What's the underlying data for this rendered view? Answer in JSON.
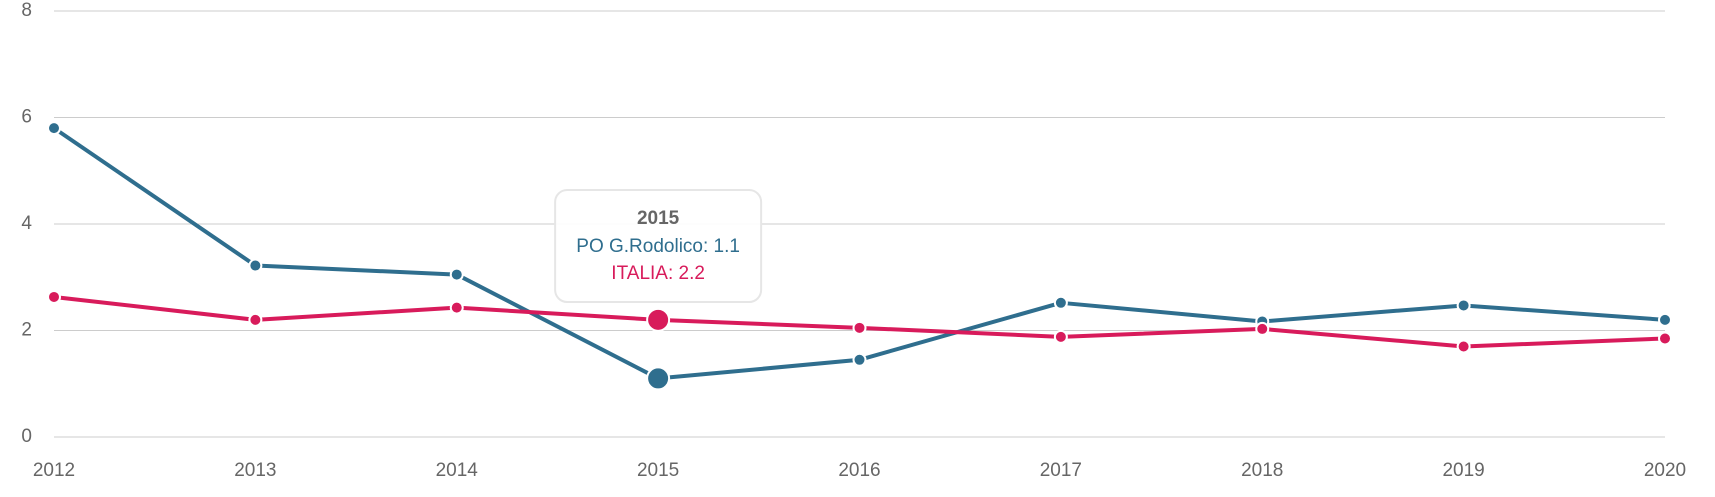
{
  "chart_data": {
    "type": "line",
    "categories": [
      "2012",
      "2013",
      "2014",
      "2015",
      "2016",
      "2017",
      "2018",
      "2019",
      "2020"
    ],
    "series": [
      {
        "name": "PO G.Rodolico",
        "color": "#2f6e8e",
        "values": [
          5.8,
          3.22,
          3.05,
          1.1,
          1.45,
          2.52,
          2.17,
          2.47,
          2.2
        ]
      },
      {
        "name": "ITALIA",
        "color": "#d81b5b",
        "values": [
          2.63,
          2.2,
          2.43,
          2.2,
          2.05,
          1.88,
          2.03,
          1.7,
          1.85
        ]
      }
    ],
    "ylim": [
      0,
      8
    ],
    "yticks": [
      0,
      2,
      4,
      6,
      8
    ],
    "grid": true,
    "tooltip": {
      "title": "2015",
      "lines": [
        "PO G.Rodolico: 1.1",
        "ITALIA: 2.2"
      ]
    }
  }
}
